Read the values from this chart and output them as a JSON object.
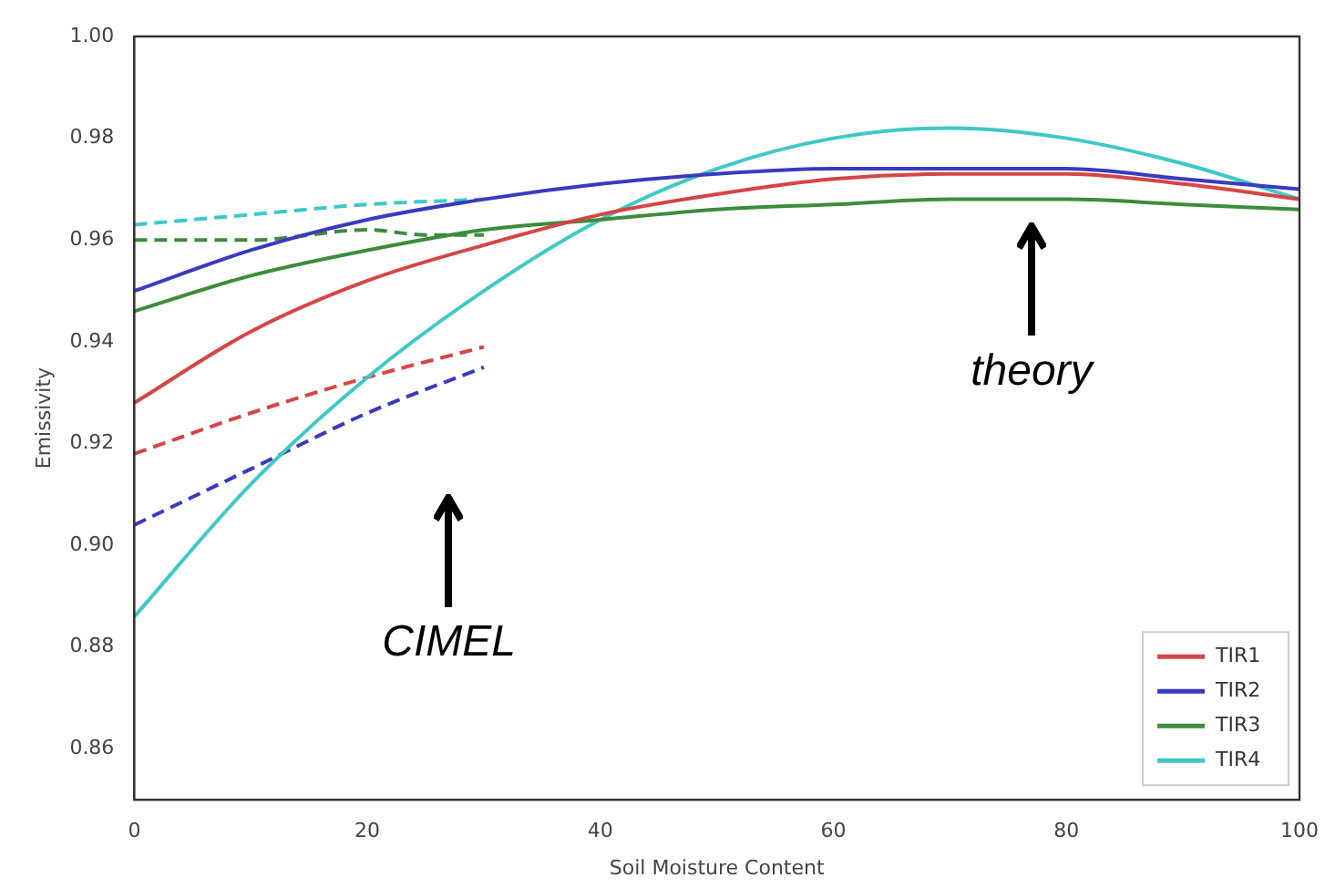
{
  "chart_data": {
    "type": "line",
    "xlabel": "Soil Moisture Content",
    "ylabel": "Emissivity",
    "xlim": [
      0,
      100
    ],
    "xticks": [
      0,
      20,
      40,
      60,
      80,
      100
    ],
    "ylim": [
      0.85,
      1.0
    ],
    "yticks": [
      {
        "value": 0.86,
        "label": "0.86"
      },
      {
        "value": 0.88,
        "label": "0.88"
      },
      {
        "value": 0.9,
        "label": "0.90"
      },
      {
        "value": 0.92,
        "label": "0.92"
      },
      {
        "value": 0.94,
        "label": "0.94"
      },
      {
        "value": 0.96,
        "label": "0.96"
      },
      {
        "value": 0.98,
        "label": "0.98"
      },
      {
        "value": 1.0,
        "label": "1.00"
      }
    ],
    "grid": false,
    "legend": "bottom right",
    "marker": "none",
    "series": [
      {
        "name": "TIR1",
        "color": "#d64545",
        "line_style": "solid",
        "x": [
          0,
          10,
          20,
          30,
          40,
          50,
          60,
          70,
          80,
          90,
          100
        ],
        "values": [
          0.928,
          0.942,
          0.952,
          0.959,
          0.965,
          0.969,
          0.972,
          0.973,
          0.973,
          0.971,
          0.968
        ]
      },
      {
        "name": "TIR2",
        "color": "#3a3ac0",
        "line_style": "solid",
        "x": [
          0,
          10,
          20,
          30,
          40,
          50,
          60,
          70,
          80,
          90,
          100
        ],
        "values": [
          0.95,
          0.958,
          0.964,
          0.968,
          0.971,
          0.973,
          0.974,
          0.974,
          0.974,
          0.972,
          0.97
        ]
      },
      {
        "name": "TIR3",
        "color": "#3c8c3c",
        "line_style": "solid",
        "x": [
          0,
          10,
          20,
          30,
          40,
          50,
          60,
          70,
          80,
          90,
          100
        ],
        "values": [
          0.946,
          0.953,
          0.958,
          0.962,
          0.964,
          0.966,
          0.967,
          0.968,
          0.968,
          0.967,
          0.966
        ]
      },
      {
        "name": "TIR4",
        "color": "#3fc8c8",
        "line_style": "solid",
        "x": [
          0,
          10,
          20,
          30,
          40,
          50,
          60,
          70,
          80,
          90,
          100
        ],
        "values": [
          0.886,
          0.912,
          0.933,
          0.95,
          0.964,
          0.974,
          0.98,
          0.982,
          0.98,
          0.975,
          0.968
        ]
      },
      {
        "color": "#d64545",
        "line_style": "dashed",
        "x": [
          0,
          10,
          20,
          30
        ],
        "values": [
          0.918,
          0.926,
          0.933,
          0.939
        ]
      },
      {
        "color": "#3a3ac0",
        "line_style": "dashed",
        "x": [
          0,
          10,
          20,
          30
        ],
        "values": [
          0.904,
          0.915,
          0.926,
          0.935
        ]
      },
      {
        "color": "#3c8c3c",
        "line_style": "dashed",
        "x": [
          0,
          10,
          20,
          25,
          30
        ],
        "values": [
          0.96,
          0.96,
          0.962,
          0.961,
          0.961
        ]
      },
      {
        "color": "#3fc8c8",
        "line_style": "dashed",
        "x": [
          0,
          10,
          20,
          30
        ],
        "values": [
          0.963,
          0.965,
          0.967,
          0.968
        ]
      }
    ],
    "annotations": [
      "CIMEL",
      "theory"
    ]
  }
}
